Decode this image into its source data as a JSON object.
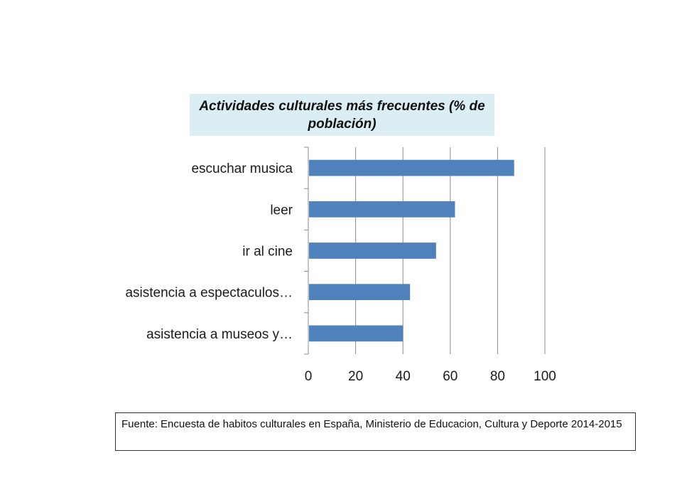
{
  "chart_data": {
    "type": "bar",
    "orientation": "horizontal",
    "title": "Actividades culturales más frecuentes (% de población)",
    "xlabel": "",
    "ylabel": "",
    "categories": [
      "escuchar musica",
      "leer",
      "ir al cine",
      "asistencia a espectaculos…",
      "asistencia a museos y…"
    ],
    "values": [
      87,
      62,
      54,
      43,
      40
    ],
    "xlim": [
      0,
      100
    ],
    "ticks": [
      "0",
      "20",
      "40",
      "60",
      "80",
      "100"
    ],
    "grid": "vertical",
    "bar_color": "#4f81bd",
    "legend": "none"
  },
  "source": {
    "text": "Fuente: Encuesta de habitos culturales en España, Ministerio de Educacion, Cultura y Deporte 2014-2015"
  }
}
